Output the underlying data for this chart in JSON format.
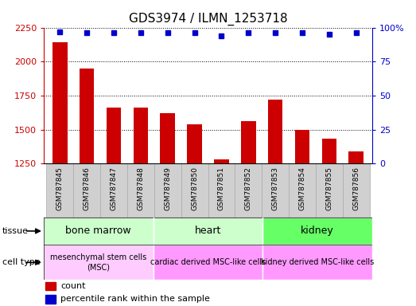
{
  "title": "GDS3974 / ILMN_1253718",
  "samples": [
    "GSM787845",
    "GSM787846",
    "GSM787847",
    "GSM787848",
    "GSM787849",
    "GSM787850",
    "GSM787851",
    "GSM787852",
    "GSM787853",
    "GSM787854",
    "GSM787855",
    "GSM787856"
  ],
  "counts": [
    2140,
    1950,
    1660,
    1665,
    1620,
    1540,
    1280,
    1565,
    1720,
    1500,
    1435,
    1340
  ],
  "percentile_ranks": [
    97,
    96,
    96,
    96,
    96,
    96,
    94,
    96,
    96,
    96,
    95,
    96
  ],
  "bar_color": "#cc0000",
  "dot_color": "#0000cc",
  "ylim_left": [
    1250,
    2250
  ],
  "ylim_right": [
    0,
    100
  ],
  "yticks_left": [
    1250,
    1500,
    1750,
    2000,
    2250
  ],
  "yticks_right": [
    0,
    25,
    50,
    75,
    100
  ],
  "ytick_right_labels": [
    "0",
    "25",
    "50",
    "75",
    "100%"
  ],
  "tissue_groups": [
    {
      "label": "bone marrow",
      "start": 0,
      "end": 4,
      "color": "#ccffcc"
    },
    {
      "label": "heart",
      "start": 4,
      "end": 8,
      "color": "#ccffcc"
    },
    {
      "label": "kidney",
      "start": 8,
      "end": 12,
      "color": "#66ff66"
    }
  ],
  "cell_type_groups": [
    {
      "label": "mesenchymal stem cells\n(MSC)",
      "start": 0,
      "end": 4,
      "color": "#ffccff"
    },
    {
      "label": "cardiac derived MSC-like cells",
      "start": 4,
      "end": 8,
      "color": "#ff99ff"
    },
    {
      "label": "kidney derived MSC-like cells",
      "start": 8,
      "end": 12,
      "color": "#ff99ff"
    }
  ],
  "legend_count_color": "#cc0000",
  "legend_pct_color": "#0000cc",
  "left_axis_color": "#cc0000",
  "right_axis_color": "#0000cc",
  "bar_width": 0.55,
  "sample_box_color": "#d0d0d0",
  "sample_box_edge_color": "#aaaaaa"
}
